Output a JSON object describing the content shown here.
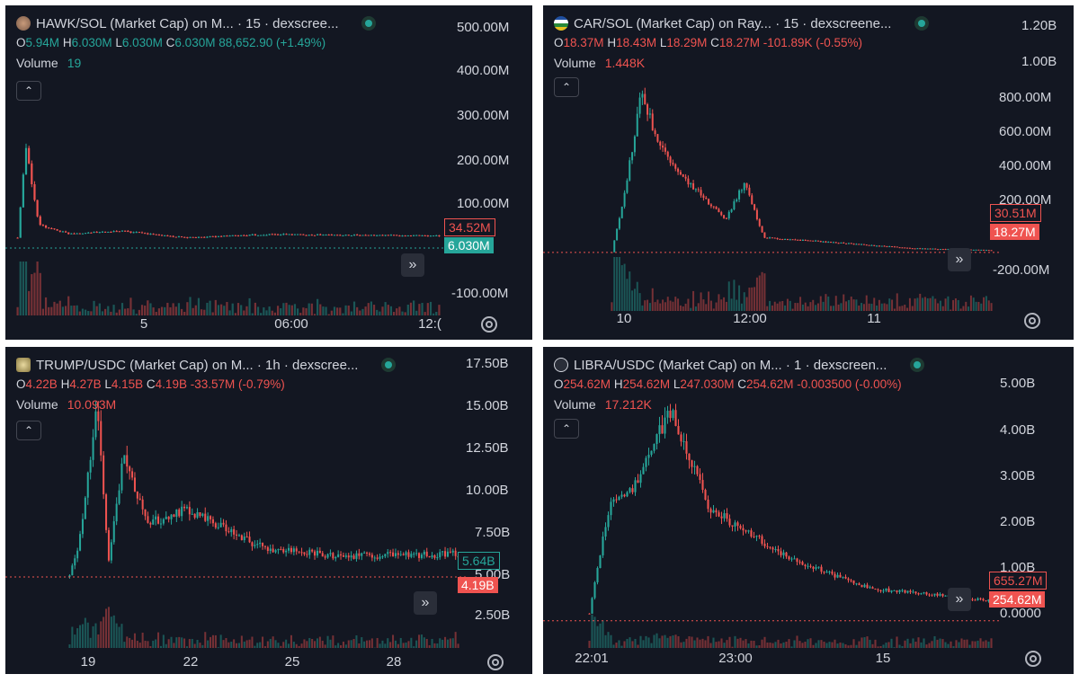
{
  "colors": {
    "up": "#26a69a",
    "down": "#ef5350",
    "bg": "#131722",
    "text": "#d1d4dc",
    "grid": "#1f2330"
  },
  "charts": [
    {
      "id": "hawk",
      "title": "HAWK/SOL (Market Cap) on M... · 15 · dexscree...",
      "ohlc": {
        "o": "5.94M",
        "h": "6.030M",
        "l": "6.030M",
        "c": "6.030M",
        "chg": "88,652.90 (+1.49%)"
      },
      "ohlc_color": "up",
      "volume": "19",
      "y_ticks": [
        "500.00M",
        "400.00M",
        "300.00M",
        "200.00M",
        "100.00M",
        "-100.00M"
      ],
      "x_ticks": [
        "5",
        "06:00",
        "12:("
      ],
      "price_tags": {
        "upper": "34.52M",
        "lower": "6.030M"
      }
    },
    {
      "id": "car",
      "title": "CAR/SOL (Market Cap) on Ray... · 15 · dexscreene...",
      "ohlc": {
        "o": "18.37M",
        "h": "18.43M",
        "l": "18.29M",
        "c": "18.27M",
        "chg": "-101.89K (-0.55%)"
      },
      "ohlc_color": "down",
      "volume": "1.448K",
      "y_ticks": [
        "1.20B",
        "1.00B",
        "800.00M",
        "600.00M",
        "400.00M",
        "200.00M",
        "-200.00M"
      ],
      "x_ticks": [
        "10",
        "12:00",
        "11"
      ],
      "price_tags": {
        "upper": "30.51M",
        "lower": "18.27M"
      }
    },
    {
      "id": "trump",
      "title": "TRUMP/USDC (Market Cap) on M... · 1h · dexscree...",
      "ohlc": {
        "o": "4.22B",
        "h": "4.27B",
        "l": "4.15B",
        "c": "4.19B",
        "chg": "-33.57M (-0.79%)"
      },
      "ohlc_color": "down",
      "volume": "10.093M",
      "y_ticks": [
        "17.50B",
        "15.00B",
        "12.50B",
        "10.00B",
        "7.50B",
        "5.00B",
        "2.50B"
      ],
      "x_ticks": [
        "19",
        "22",
        "25",
        "28"
      ],
      "price_tags": {
        "upper": "5.64B",
        "lower": "4.19B"
      }
    },
    {
      "id": "libra",
      "title": "LIBRA/USDC (Market Cap) on M... · 1 · dexscreen...",
      "ohlc": {
        "o": "254.62M",
        "h": "254.62M",
        "l": "247.030M",
        "c": "254.62M",
        "chg": "-0.003500 (-0.00%)"
      },
      "ohlc_color": "down",
      "volume": "17.212K",
      "y_ticks": [
        "5.00B",
        "4.00B",
        "3.00B",
        "2.00B",
        "1.00B",
        "0.0000"
      ],
      "x_ticks": [
        "22:01",
        "23:00",
        "15"
      ],
      "price_tags": {
        "upper": "655.27M",
        "lower": "254.62M"
      }
    }
  ],
  "chart_data": [
    {
      "type": "candlestick",
      "title": "HAWK/SOL (Market Cap) on M... · 15 · dexscree...",
      "x_ticks": [
        "5",
        "06:00",
        "12:("
      ],
      "ylim": [
        -120000000,
        520000000
      ],
      "unit": "M",
      "close_path": [
        [
          0,
          30
        ],
        [
          0.02,
          240
        ],
        [
          0.05,
          60
        ],
        [
          0.12,
          40
        ],
        [
          0.25,
          45
        ],
        [
          0.4,
          30
        ],
        [
          0.6,
          38
        ],
        [
          0.8,
          36
        ],
        [
          1,
          34.5
        ]
      ],
      "last_price": 6.03
    },
    {
      "type": "candlestick",
      "title": "CAR/SOL (Market Cap) on Ray... · 15 · dexscreene...",
      "x_ticks": [
        "10",
        "12:00",
        "11"
      ],
      "ylim": [
        -250000000,
        1250000000
      ],
      "unit": "M",
      "close_path": [
        [
          0,
          20
        ],
        [
          0.03,
          300
        ],
        [
          0.08,
          900
        ],
        [
          0.12,
          600
        ],
        [
          0.2,
          400
        ],
        [
          0.3,
          200
        ],
        [
          0.35,
          400
        ],
        [
          0.4,
          100
        ],
        [
          0.6,
          70
        ],
        [
          0.8,
          40
        ],
        [
          1,
          30.5
        ]
      ],
      "last_price": 18.27
    },
    {
      "type": "candlestick",
      "title": "TRUMP/USDC (Market Cap) on M... · 1h · dexscree...",
      "x_ticks": [
        "19",
        "22",
        "25",
        "28"
      ],
      "ylim": [
        0,
        18000000000
      ],
      "unit": "B",
      "close_path": [
        [
          0,
          4.2
        ],
        [
          0.03,
          7
        ],
        [
          0.07,
          15
        ],
        [
          0.1,
          5
        ],
        [
          0.14,
          12
        ],
        [
          0.2,
          7.5
        ],
        [
          0.3,
          8.5
        ],
        [
          0.5,
          6
        ],
        [
          0.7,
          5.5
        ],
        [
          1,
          5.64
        ]
      ],
      "last_price": 4.19
    },
    {
      "type": "candlestick",
      "title": "LIBRA/USDC (Market Cap) on M... · 1 · dexscreen...",
      "x_ticks": [
        "22:01",
        "23:00",
        "15"
      ],
      "ylim": [
        -200000000,
        5300000000
      ],
      "unit": "B",
      "close_path": [
        [
          0,
          0.4
        ],
        [
          0.05,
          2.6
        ],
        [
          0.12,
          3
        ],
        [
          0.2,
          4.5
        ],
        [
          0.3,
          2.5
        ],
        [
          0.4,
          2
        ],
        [
          0.5,
          1.5
        ],
        [
          0.7,
          0.9
        ],
        [
          0.9,
          0.75
        ],
        [
          1,
          0.655
        ]
      ],
      "last_price": 0.25462
    }
  ]
}
